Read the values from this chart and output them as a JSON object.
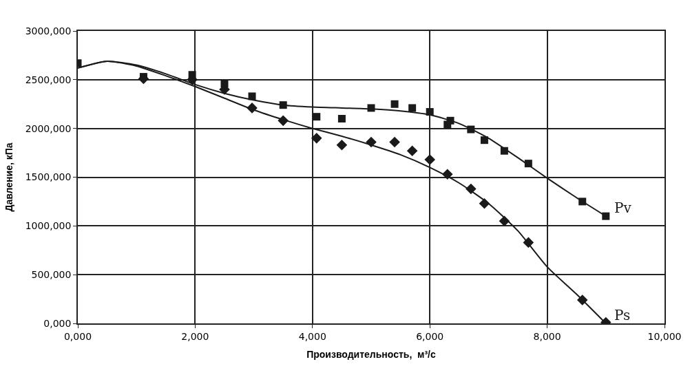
{
  "chart_data": {
    "type": "scatter",
    "xlabel": "Производительность,  м³/с",
    "ylabel": "Давление, кПа",
    "xlim": [
      0,
      10
    ],
    "ylim": [
      0,
      3000
    ],
    "xticks": [
      {
        "value": 0,
        "label": "0,000"
      },
      {
        "value": 2,
        "label": "2,000"
      },
      {
        "value": 4,
        "label": "4,000"
      },
      {
        "value": 6,
        "label": "6,000"
      },
      {
        "value": 8,
        "label": "8,000"
      },
      {
        "value": 10,
        "label": "10,000"
      }
    ],
    "yticks": [
      {
        "value": 0,
        "label": "0,000"
      },
      {
        "value": 500,
        "label": "500,000"
      },
      {
        "value": 1000,
        "label": "1000,000"
      },
      {
        "value": 1500,
        "label": "1500,000"
      },
      {
        "value": 2000,
        "label": "2000,000"
      },
      {
        "value": 2500,
        "label": "2500,000"
      },
      {
        "value": 3000,
        "label": "3000,000"
      }
    ],
    "grid": true,
    "series": [
      {
        "marker": "square",
        "color": "#1a1a1a",
        "x": [
          0,
          1.12,
          1.95,
          2.5,
          2.97,
          3.5,
          4.07,
          4.5,
          5.0,
          5.4,
          5.7,
          6.0,
          6.3,
          6.35,
          6.7,
          6.93,
          7.27,
          7.68,
          8.6,
          9.0
        ],
        "values": [
          2670,
          2530,
          2550,
          2460,
          2330,
          2240,
          2120,
          2100,
          2210,
          2250,
          2210,
          2170,
          2040,
          2080,
          1990,
          1880,
          1770,
          1640,
          1250,
          1100
        ]
      },
      {
        "marker": "diamond",
        "color": "#1a1a1a",
        "x": [
          1.12,
          1.95,
          2.5,
          2.97,
          3.5,
          4.07,
          4.5,
          5.0,
          5.4,
          5.7,
          6.0,
          6.3,
          6.7,
          6.93,
          7.27,
          7.68,
          8.6,
          9.0
        ],
        "values": [
          2510,
          2500,
          2400,
          2210,
          2080,
          1900,
          1830,
          1860,
          1860,
          1770,
          1680,
          1530,
          1380,
          1230,
          1050,
          830,
          240,
          10
        ]
      },
      {
        "type": "line",
        "name": "Pv",
        "color": "#1a1a1a",
        "x": [
          0,
          0.5,
          1,
          1.5,
          2,
          2.5,
          3,
          3.5,
          4,
          4.5,
          5,
          5.5,
          6,
          6.5,
          7,
          7.5,
          8,
          8.5,
          9
        ],
        "values": [
          2620,
          2690,
          2650,
          2560,
          2450,
          2360,
          2290,
          2240,
          2220,
          2210,
          2200,
          2180,
          2140,
          2050,
          1900,
          1700,
          1490,
          1290,
          1100
        ]
      },
      {
        "type": "line",
        "name": "Ps",
        "color": "#1a1a1a",
        "x": [
          0,
          0.5,
          1,
          1.5,
          2,
          2.5,
          3,
          3.5,
          4,
          4.5,
          5,
          5.5,
          6,
          6.5,
          7,
          7.5,
          8,
          8.5,
          9
        ],
        "values": [
          2620,
          2690,
          2640,
          2540,
          2430,
          2310,
          2190,
          2090,
          2000,
          1920,
          1830,
          1730,
          1600,
          1440,
          1230,
          950,
          580,
          300,
          0
        ]
      }
    ]
  }
}
